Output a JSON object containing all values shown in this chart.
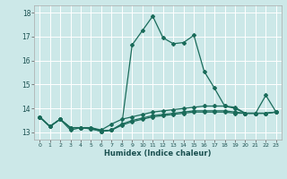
{
  "xlabel": "Humidex (Indice chaleur)",
  "xlim": [
    -0.5,
    23.5
  ],
  "ylim": [
    12.7,
    18.3
  ],
  "bg_color": "#cce8e8",
  "grid_color": "#ffffff",
  "line_color": "#1a6b5a",
  "yticks": [
    13,
    14,
    15,
    16,
    17,
    18
  ],
  "xticks": [
    0,
    1,
    2,
    3,
    4,
    5,
    6,
    7,
    8,
    9,
    10,
    11,
    12,
    13,
    14,
    15,
    16,
    17,
    18,
    19,
    20,
    21,
    22,
    23
  ],
  "line1_x": [
    0,
    1,
    2,
    3,
    4,
    5,
    6,
    7,
    8,
    9,
    10,
    11,
    12,
    13,
    14,
    15,
    16,
    17,
    18,
    19,
    20,
    21,
    22,
    23
  ],
  "line1_y": [
    13.65,
    13.25,
    13.55,
    13.1,
    13.2,
    13.2,
    13.05,
    13.1,
    13.35,
    16.65,
    17.25,
    17.85,
    16.95,
    16.7,
    16.75,
    17.05,
    15.55,
    14.85,
    14.1,
    14.0,
    13.8,
    13.8,
    14.55,
    13.85
  ],
  "line2_x": [
    0,
    1,
    2,
    3,
    4,
    5,
    6,
    7,
    8,
    9,
    10,
    11,
    12,
    13,
    14,
    15,
    16,
    17,
    18,
    19,
    20,
    21,
    22,
    23
  ],
  "line2_y": [
    13.65,
    13.25,
    13.55,
    13.2,
    13.2,
    13.2,
    13.1,
    13.35,
    13.55,
    13.65,
    13.75,
    13.85,
    13.9,
    13.95,
    14.0,
    14.05,
    14.1,
    14.1,
    14.1,
    14.05,
    13.8,
    13.8,
    13.8,
    13.85
  ],
  "line3_x": [
    0,
    1,
    2,
    3,
    4,
    5,
    6,
    7,
    8,
    9,
    10,
    11,
    12,
    13,
    14,
    15,
    16,
    17,
    18,
    19,
    20,
    21,
    22,
    23
  ],
  "line3_y": [
    13.65,
    13.25,
    13.55,
    13.2,
    13.2,
    13.15,
    13.05,
    13.1,
    13.35,
    13.5,
    13.6,
    13.7,
    13.75,
    13.8,
    13.85,
    13.9,
    13.9,
    13.9,
    13.9,
    13.85,
    13.8,
    13.8,
    13.8,
    13.85
  ],
  "line4_x": [
    0,
    1,
    2,
    3,
    4,
    5,
    6,
    7,
    8,
    9,
    10,
    11,
    12,
    13,
    14,
    15,
    16,
    17,
    18,
    19,
    20,
    21,
    22,
    23
  ],
  "line4_y": [
    13.65,
    13.25,
    13.55,
    13.2,
    13.2,
    13.15,
    13.05,
    13.1,
    13.3,
    13.45,
    13.55,
    13.65,
    13.7,
    13.75,
    13.8,
    13.85,
    13.85,
    13.85,
    13.85,
    13.8,
    13.8,
    13.8,
    13.8,
    13.85
  ]
}
